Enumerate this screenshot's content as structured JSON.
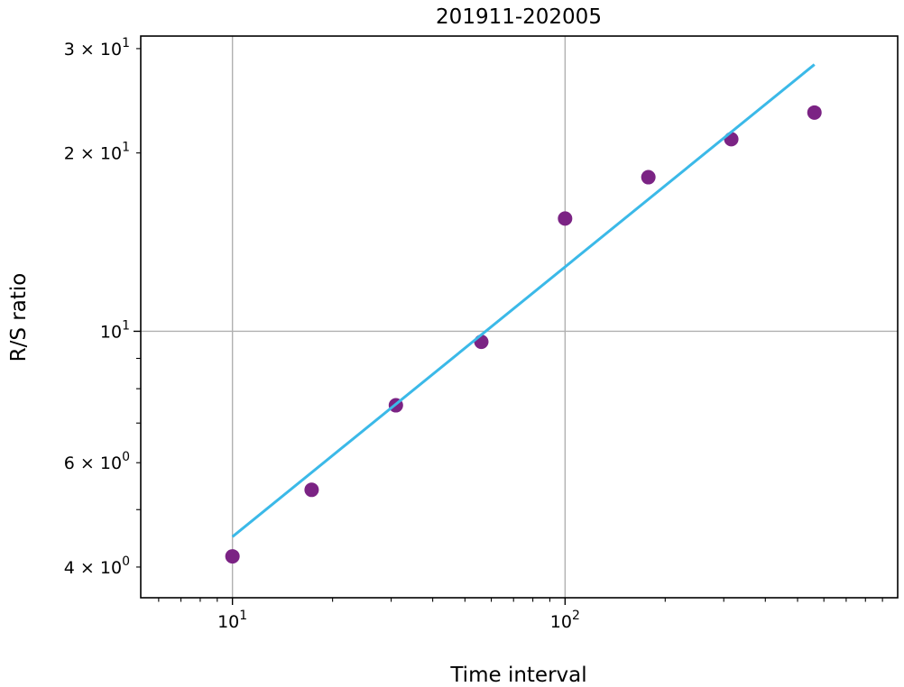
{
  "chart_data": {
    "type": "scatter",
    "title": "201911-202005",
    "xlabel": "Time interval",
    "ylabel": "R/S ratio",
    "x_scale": "log",
    "y_scale": "log",
    "xlim": [
      5.3,
      1000
    ],
    "ylim": [
      3.55,
      31.5
    ],
    "grid": true,
    "x_ticks": [
      {
        "value": 10,
        "base": "10",
        "exp": "1"
      },
      {
        "value": 100,
        "base": "10",
        "exp": "2"
      }
    ],
    "y_ticks": [
      {
        "value": 4,
        "mant": "4",
        "base": "10",
        "exp": "0"
      },
      {
        "value": 6,
        "mant": "6",
        "base": "10",
        "exp": "0"
      },
      {
        "value": 10,
        "mant": "",
        "base": "10",
        "exp": "1"
      },
      {
        "value": 20,
        "mant": "2",
        "base": "10",
        "exp": "1"
      },
      {
        "value": 30,
        "mant": "3",
        "base": "10",
        "exp": "1"
      }
    ],
    "series": [
      {
        "type": "scatter",
        "color": "#7b2384",
        "points": [
          {
            "x": 10,
            "y": 4.17
          },
          {
            "x": 17.3,
            "y": 5.4
          },
          {
            "x": 31,
            "y": 7.5
          },
          {
            "x": 56,
            "y": 9.6
          },
          {
            "x": 100,
            "y": 15.5
          },
          {
            "x": 178,
            "y": 18.2
          },
          {
            "x": 316,
            "y": 21.1
          },
          {
            "x": 562,
            "y": 23.4
          }
        ]
      },
      {
        "type": "line",
        "color": "#3bb9e8",
        "points": [
          {
            "x": 10,
            "y": 4.5
          },
          {
            "x": 562,
            "y": 28.2
          }
        ]
      }
    ]
  }
}
